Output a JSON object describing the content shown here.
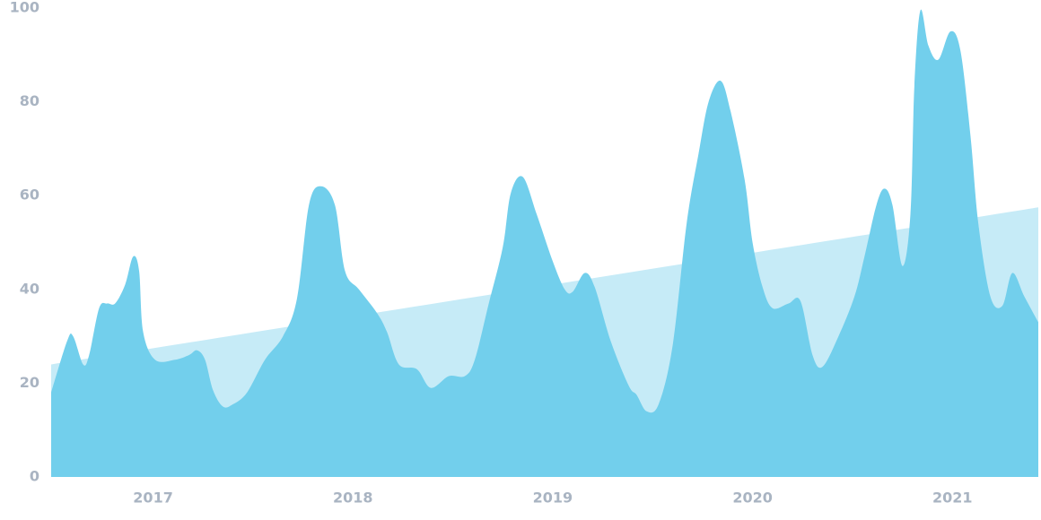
{
  "chart_data": {
    "type": "area",
    "xlim": [
      2016.49,
      2021.43
    ],
    "xticks": [
      2017,
      2018,
      2019,
      2020,
      2021
    ],
    "ylim": [
      0,
      100
    ],
    "yticks": [
      0,
      20,
      40,
      60,
      80,
      100
    ],
    "series": [
      {
        "color": "#c6ebf7",
        "x": [
          2016.49,
          2021.43
        ],
        "values": [
          24,
          57.5
        ]
      },
      {
        "color": "#72cfec",
        "x": [
          2016.49,
          2016.57,
          2016.6,
          2016.65,
          2016.68,
          2016.73,
          2016.77,
          2016.81,
          2016.86,
          2016.9,
          2016.93,
          2016.95,
          2017.01,
          2017.11,
          2017.18,
          2017.22,
          2017.26,
          2017.3,
          2017.35,
          2017.4,
          2017.47,
          2017.56,
          2017.65,
          2017.72,
          2017.78,
          2017.84,
          2017.91,
          2017.96,
          2018.03,
          2018.12,
          2018.17,
          2018.23,
          2018.32,
          2018.39,
          2018.48,
          2018.56,
          2018.61,
          2018.68,
          2018.75,
          2018.79,
          2018.85,
          2018.92,
          2019.0,
          2019.06,
          2019.1,
          2019.16,
          2019.21,
          2019.29,
          2019.38,
          2019.42,
          2019.47,
          2019.53,
          2019.6,
          2019.67,
          2019.73,
          2019.78,
          2019.84,
          2019.89,
          2019.96,
          2020.0,
          2020.05,
          2020.1,
          2020.18,
          2020.24,
          2020.3,
          2020.35,
          2020.43,
          2020.51,
          2020.56,
          2020.62,
          2020.66,
          2020.7,
          2020.75,
          2020.79,
          2020.81,
          2020.84,
          2020.88,
          2020.93,
          2020.99,
          2021.04,
          2021.09,
          2021.13,
          2021.19,
          2021.25,
          2021.3,
          2021.36,
          2021.43
        ],
        "values": [
          18,
          29,
          30,
          24,
          26,
          36,
          37,
          37,
          41,
          47,
          44,
          31,
          25,
          25,
          26,
          27,
          25,
          18.5,
          15,
          15.5,
          18,
          25,
          30,
          38,
          58,
          62,
          58,
          44,
          40,
          35,
          31,
          24,
          23,
          19,
          21.5,
          21.5,
          25,
          37,
          49,
          60.5,
          64,
          56,
          46,
          40,
          39.5,
          43.5,
          40.5,
          29,
          19.5,
          17.5,
          14,
          15.5,
          28,
          54,
          69,
          80,
          84.5,
          78,
          63.5,
          50,
          40.5,
          36,
          37,
          37.5,
          26,
          23.5,
          30,
          38.5,
          47,
          58,
          61.5,
          58,
          45,
          56,
          83.5,
          99.5,
          92,
          89,
          95,
          91,
          73,
          54,
          38.5,
          36.5,
          43.5,
          38.5,
          33
        ]
      }
    ]
  }
}
